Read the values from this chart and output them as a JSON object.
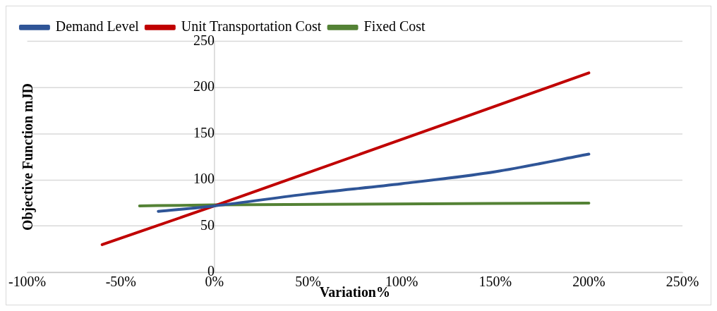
{
  "chart_data": {
    "type": "line",
    "xlabel": "Variation%",
    "ylabel": "Objective Function mJD",
    "xlim": [
      -100,
      250
    ],
    "xticks": [
      {
        "value": -100,
        "label": "-100%"
      },
      {
        "value": -50,
        "label": "-50%"
      },
      {
        "value": 0,
        "label": "0%"
      },
      {
        "value": 50,
        "label": "50%"
      },
      {
        "value": 100,
        "label": "100%"
      },
      {
        "value": 150,
        "label": "150%"
      },
      {
        "value": 200,
        "label": "200%"
      },
      {
        "value": 250,
        "label": "250%"
      }
    ],
    "ylim": [
      0,
      250
    ],
    "yticks": [
      0,
      50,
      100,
      150,
      200,
      250
    ],
    "grid": "y",
    "legend": "top",
    "marker": "none",
    "series": [
      {
        "name": "Demand Level",
        "color": "#2f5597",
        "x": [
          -30,
          0,
          50,
          100,
          150,
          200
        ],
        "values": [
          66,
          72,
          85,
          96,
          109,
          128
        ]
      },
      {
        "name": "Unit Transportation Cost",
        "color": "#c00000",
        "x": [
          -60,
          0,
          200
        ],
        "values": [
          30,
          72,
          216
        ]
      },
      {
        "name": "Fixed Cost",
        "color": "#548235",
        "x": [
          -40,
          0,
          200
        ],
        "values": [
          72,
          73,
          75
        ]
      }
    ]
  }
}
